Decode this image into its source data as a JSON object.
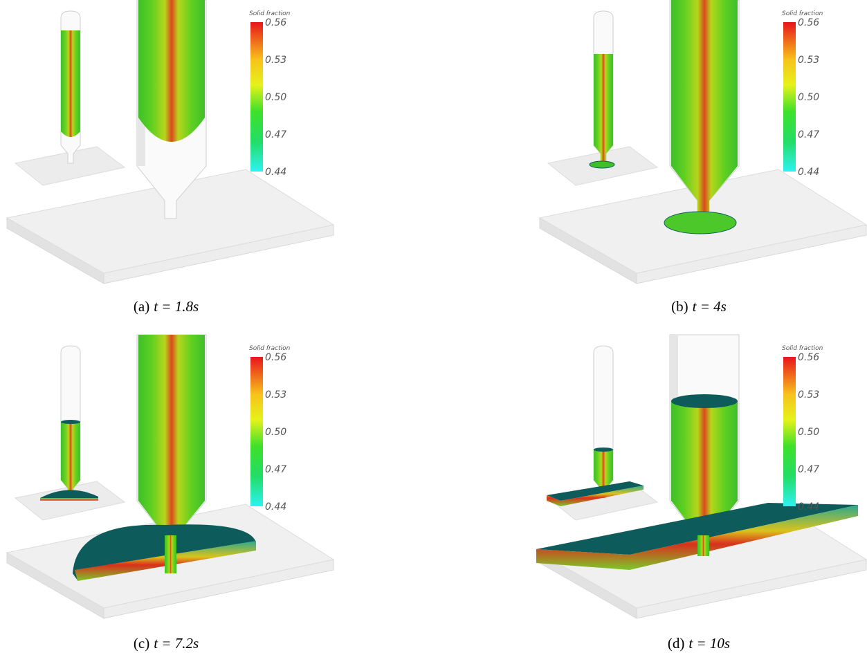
{
  "panels": [
    {
      "label": "(a)",
      "time": "t = 1.8s",
      "colorbar": {
        "title": "Solid fraction",
        "ticks": [
          "0.56",
          "0.53",
          "0.50",
          "0.47",
          "0.44"
        ]
      }
    },
    {
      "label": "(b)",
      "time": "t = 4s",
      "colorbar": {
        "title": "Solid fraction",
        "ticks": [
          "0.56",
          "0.53",
          "0.50",
          "0.47",
          "0.44"
        ]
      }
    },
    {
      "label": "(c)",
      "time": "t = 7.2s",
      "colorbar": {
        "title": "Solid fraction",
        "ticks": [
          "0.56",
          "0.53",
          "0.50",
          "0.47",
          "0.44"
        ]
      }
    },
    {
      "label": "(d)",
      "time": "t = 10s",
      "colorbar": {
        "title": "Solid fraction",
        "ticks": [
          "0.56",
          "0.53",
          "0.50",
          "0.47",
          "0.44"
        ]
      }
    }
  ]
}
